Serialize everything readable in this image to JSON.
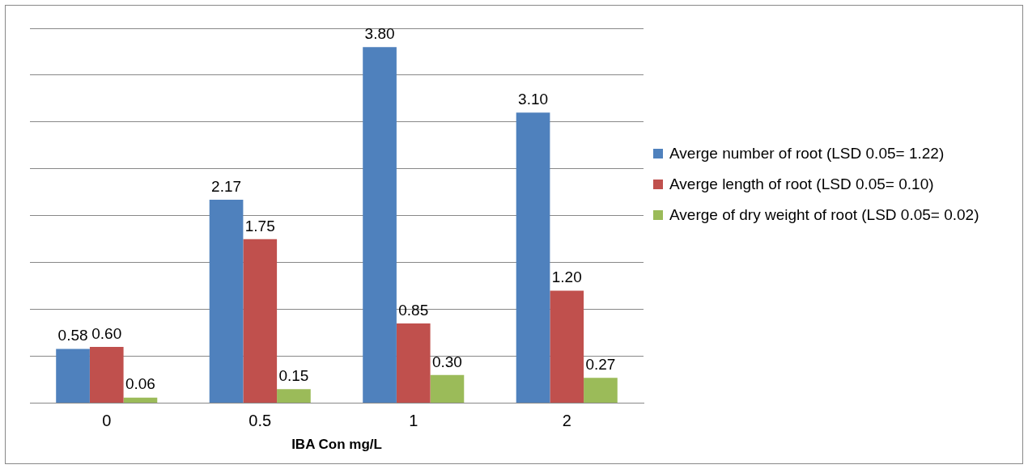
{
  "chart_data": {
    "type": "bar",
    "xlabel": "IBA Con mg/L",
    "categories": [
      "0",
      "0.5",
      "1",
      "2"
    ],
    "series": [
      {
        "name": "Averge number of root (LSD 0.05= 1.22)",
        "color": "#4f81bd",
        "values": [
          0.58,
          2.17,
          3.8,
          3.1
        ],
        "value_labels": [
          "0.58",
          "2.17",
          "3.80",
          "3.10"
        ]
      },
      {
        "name": "Averge length of root (LSD 0.05= 0.10)",
        "color": "#c0504d",
        "values": [
          0.6,
          1.75,
          0.85,
          1.2
        ],
        "value_labels": [
          "0.60",
          "1.75",
          "0.85",
          "1.20"
        ]
      },
      {
        "name": "Averge of dry weight of root (LSD 0.05= 0.02)",
        "color": "#9bbb59",
        "values": [
          0.06,
          0.15,
          0.3,
          0.27
        ],
        "value_labels": [
          "0.06",
          "0.15",
          "0.30",
          "0.27"
        ]
      }
    ],
    "ylim": [
      0,
      4
    ],
    "yticks": [
      {
        "value": 0,
        "label": null
      },
      {
        "value": 0.5,
        "label": null
      },
      {
        "value": 1,
        "label": null
      },
      {
        "value": 1.5,
        "label": null
      },
      {
        "value": 2,
        "label": null
      },
      {
        "value": 2.5,
        "label": null
      },
      {
        "value": 3,
        "label": null
      },
      {
        "value": 3.5,
        "label": null
      },
      {
        "value": 4,
        "label": null
      }
    ],
    "tick_labels": "x",
    "grid": "y",
    "legend": "right"
  }
}
